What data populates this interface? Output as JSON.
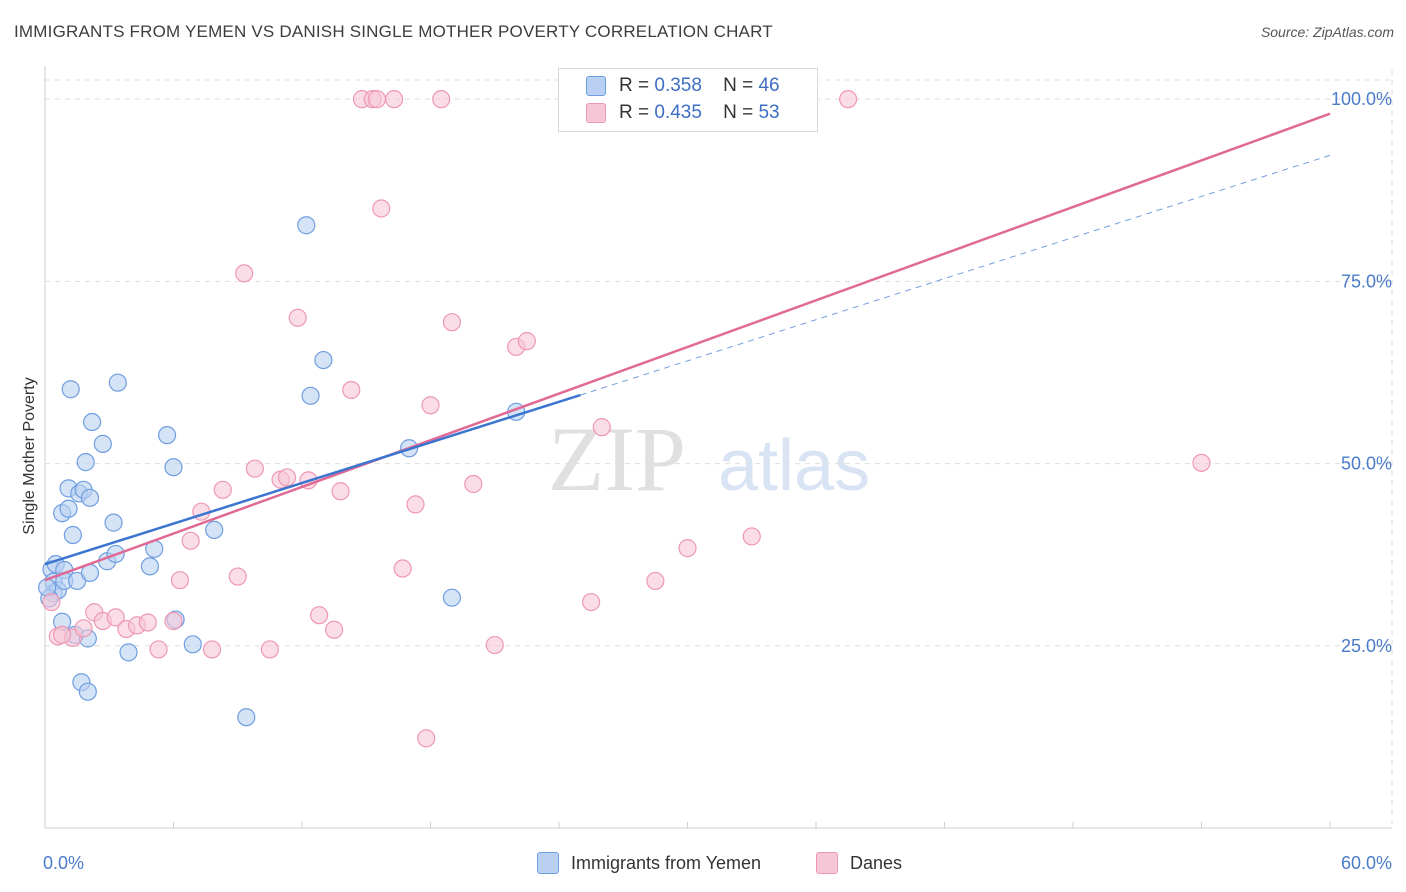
{
  "header": {
    "title": "IMMIGRANTS FROM YEMEN VS DANISH SINGLE MOTHER POVERTY CORRELATION CHART",
    "source": "Source: ZipAtlas.com"
  },
  "watermark": {
    "zip": "ZIP",
    "atlas": "atlas"
  },
  "legend": {
    "rows": [
      {
        "r_label": "R =",
        "r_value": "0.358",
        "n_label": "N =",
        "n_value": "46"
      },
      {
        "r_label": "R =",
        "r_value": "0.435",
        "n_label": "N =",
        "n_value": "53"
      }
    ]
  },
  "colors": {
    "series1_fill": "#b9d0f2",
    "series1_stroke": "#6f9ee0",
    "series1_line": "#3a75d0",
    "series2_fill": "#f7c6d6",
    "series2_stroke": "#ee98b4",
    "series2_line": "#e06a95",
    "tick_label": "#4a7cc9",
    "grid": "#dedede"
  },
  "chart_data": {
    "type": "scatter",
    "title": "IMMIGRANTS FROM YEMEN VS DANISH SINGLE MOTHER POVERTY CORRELATION CHART",
    "xlabel": "",
    "ylabel": "Single Mother Poverty",
    "xlim": [
      0,
      60
    ],
    "ylim": [
      0,
      104
    ],
    "x_tick_labels": [
      "0.0%",
      "60.0%"
    ],
    "y_ticks": [
      25,
      50,
      75,
      100
    ],
    "y_tick_labels": [
      "25.0%",
      "50.0%",
      "75.0%",
      "100.0%"
    ],
    "grid": true,
    "legend_position": "top-center",
    "series": [
      {
        "name": "Immigrants from Yemen",
        "points": [
          [
            0.3,
            35.5
          ],
          [
            0.4,
            33.8
          ],
          [
            0.5,
            36.2
          ],
          [
            0.4,
            32.2
          ],
          [
            0.6,
            32.6
          ],
          [
            0.8,
            28.3
          ],
          [
            0.9,
            35.4
          ],
          [
            0.9,
            33.9
          ],
          [
            0.8,
            43.2
          ],
          [
            1.1,
            43.8
          ],
          [
            1.1,
            46.6
          ],
          [
            1.2,
            60.2
          ],
          [
            1.3,
            40.2
          ],
          [
            1.4,
            26.5
          ],
          [
            1.5,
            33.9
          ],
          [
            1.7,
            20.0
          ],
          [
            1.6,
            45.9
          ],
          [
            1.8,
            46.4
          ],
          [
            1.9,
            50.2
          ],
          [
            2.1,
            45.3
          ],
          [
            2.1,
            35.0
          ],
          [
            2.0,
            18.7
          ],
          [
            2.2,
            55.7
          ],
          [
            2.0,
            26.0
          ],
          [
            2.7,
            52.7
          ],
          [
            2.9,
            36.6
          ],
          [
            3.2,
            41.9
          ],
          [
            3.3,
            37.6
          ],
          [
            3.4,
            61.1
          ],
          [
            3.9,
            24.1
          ],
          [
            4.9,
            35.9
          ],
          [
            5.1,
            38.3
          ],
          [
            5.7,
            53.9
          ],
          [
            6.0,
            49.5
          ],
          [
            6.1,
            28.6
          ],
          [
            6.9,
            25.2
          ],
          [
            7.9,
            40.9
          ],
          [
            9.4,
            15.2
          ],
          [
            12.2,
            82.7
          ],
          [
            12.4,
            59.3
          ],
          [
            13.0,
            64.2
          ],
          [
            17.0,
            52.1
          ],
          [
            19.0,
            31.6
          ],
          [
            22.0,
            57.1
          ],
          [
            0.2,
            31.5
          ],
          [
            0.1,
            33.0
          ]
        ]
      },
      {
        "name": "Danes",
        "points": [
          [
            0.3,
            31.0
          ],
          [
            0.6,
            26.3
          ],
          [
            1.3,
            26.1
          ],
          [
            1.8,
            27.4
          ],
          [
            2.3,
            29.6
          ],
          [
            2.7,
            28.4
          ],
          [
            3.3,
            28.9
          ],
          [
            3.8,
            27.3
          ],
          [
            4.3,
            27.8
          ],
          [
            4.8,
            28.2
          ],
          [
            5.3,
            24.5
          ],
          [
            6.0,
            28.4
          ],
          [
            6.3,
            34.0
          ],
          [
            6.8,
            39.4
          ],
          [
            7.3,
            43.4
          ],
          [
            7.8,
            24.5
          ],
          [
            8.3,
            46.4
          ],
          [
            9.0,
            34.5
          ],
          [
            9.3,
            76.1
          ],
          [
            9.8,
            49.3
          ],
          [
            10.5,
            24.5
          ],
          [
            11.0,
            47.8
          ],
          [
            11.3,
            48.1
          ],
          [
            11.8,
            70.0
          ],
          [
            12.3,
            47.7
          ],
          [
            12.8,
            29.2
          ],
          [
            13.5,
            27.2
          ],
          [
            13.8,
            46.2
          ],
          [
            14.3,
            60.1
          ],
          [
            14.8,
            100.0
          ],
          [
            15.3,
            100.0
          ],
          [
            15.5,
            100.0
          ],
          [
            15.7,
            85.0
          ],
          [
            16.3,
            100.0
          ],
          [
            16.7,
            35.6
          ],
          [
            17.3,
            44.4
          ],
          [
            17.8,
            12.3
          ],
          [
            18.0,
            58.0
          ],
          [
            18.5,
            100.0
          ],
          [
            19.0,
            69.4
          ],
          [
            20.0,
            47.2
          ],
          [
            21.0,
            25.1
          ],
          [
            22.0,
            66.0
          ],
          [
            22.5,
            66.8
          ],
          [
            25.0,
            100.0
          ],
          [
            25.5,
            31.0
          ],
          [
            26.0,
            55.0
          ],
          [
            28.5,
            33.9
          ],
          [
            30.0,
            38.4
          ],
          [
            33.0,
            40.0
          ],
          [
            37.5,
            100.0
          ],
          [
            54.0,
            50.1
          ],
          [
            0.8,
            26.5
          ]
        ]
      }
    ],
    "trend_lines": [
      {
        "series": "Immigrants from Yemen",
        "solid": [
          [
            0,
            36.2
          ],
          [
            25,
            59.4
          ]
        ],
        "dashed": [
          [
            25,
            59.4
          ],
          [
            60,
            92.3
          ]
        ]
      },
      {
        "series": "Danes",
        "solid": [
          [
            0,
            34.0
          ],
          [
            60,
            98.0
          ]
        ]
      }
    ]
  }
}
